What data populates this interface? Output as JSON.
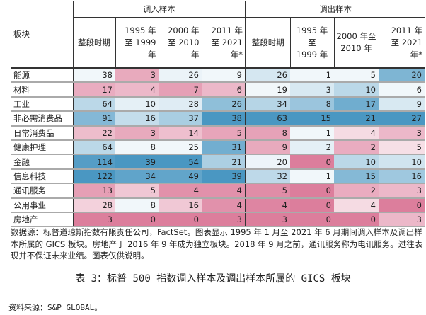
{
  "table": {
    "sector_header": "板块",
    "groups": [
      "调入样本",
      "调出样本"
    ],
    "subheaders": [
      [
        "整段时期"
      ],
      [
        "1995 年",
        "至 1999",
        "年"
      ],
      [
        "2000 年",
        "至 2010",
        "年"
      ],
      [
        "2011 年",
        "至  2021",
        "年*"
      ],
      [
        "整段时期"
      ],
      [
        "1995 年至",
        "1999 年"
      ],
      [
        "2000 年至",
        "2010 年"
      ],
      [
        "2011 年",
        "至 2021",
        "年*"
      ]
    ],
    "rows": [
      {
        "sector": "能源",
        "values": [
          38,
          3,
          26,
          9,
          26,
          1,
          5,
          20
        ]
      },
      {
        "sector": "材料",
        "values": [
          17,
          4,
          7,
          6,
          19,
          3,
          10,
          6
        ]
      },
      {
        "sector": "工业",
        "values": [
          64,
          10,
          28,
          26,
          34,
          8,
          17,
          9
        ]
      },
      {
        "sector": "非必需消费品",
        "values": [
          91,
          16,
          37,
          38,
          63,
          15,
          21,
          27
        ]
      },
      {
        "sector": "日常消费品",
        "values": [
          22,
          3,
          14,
          5,
          8,
          1,
          4,
          3
        ]
      },
      {
        "sector": "健康护理",
        "values": [
          64,
          8,
          25,
          31,
          9,
          2,
          2,
          5
        ]
      },
      {
        "sector": "金融",
        "values": [
          114,
          39,
          54,
          21,
          20,
          0,
          10,
          10
        ]
      },
      {
        "sector": "信息科技",
        "values": [
          122,
          34,
          49,
          39,
          32,
          1,
          15,
          16
        ]
      },
      {
        "sector": "通讯服务",
        "values": [
          13,
          5,
          4,
          4,
          5,
          0,
          2,
          3
        ]
      },
      {
        "sector": "公用事业",
        "values": [
          28,
          8,
          16,
          4,
          4,
          0,
          4,
          0
        ]
      },
      {
        "sector": "房地产",
        "values": [
          3,
          0,
          0,
          3,
          3,
          0,
          0,
          3
        ]
      }
    ],
    "colors": {
      "high": "#4a97c2",
      "mid": "#ffffff",
      "low": "#dc7e9c"
    }
  },
  "notes": "数据源：标普道琼斯指数有限责任公司，FactSet。图表显示 1995 年 1 月至 2021 年 6 月期间调入样本及调出样本所属的 GICS 板块。房地产于 2016 年 9 年成为独立板块。2018 年 9 月之前，通讯服务称为电讯服务。过往表现并不保证未来业绩。图表仅供说明。",
  "caption": "表 3：标普 500 指数调入样本及调出样本所属的 GICS 板块",
  "source": "资料来源：S&P GLOBAL。"
}
